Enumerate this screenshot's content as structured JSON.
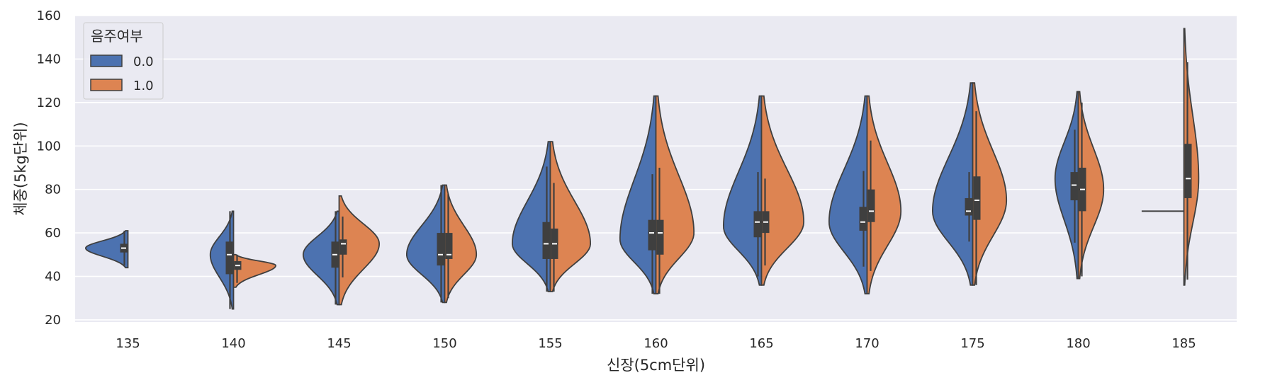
{
  "chart_data": {
    "type": "violin",
    "split": true,
    "xlabel": "신장(5cm단위)",
    "ylabel": "체중(5kg단위)",
    "ylim": [
      19,
      160
    ],
    "yticks": [
      20,
      40,
      60,
      80,
      100,
      120,
      140,
      160
    ],
    "categories": [
      "135",
      "140",
      "145",
      "150",
      "155",
      "160",
      "165",
      "170",
      "175",
      "180",
      "185"
    ],
    "grid": true,
    "legend": {
      "title": "음주여부",
      "position": "top-left",
      "entries": [
        {
          "label": "0.0",
          "color": "#4c72b0"
        },
        {
          "label": "1.0",
          "color": "#dd8452"
        }
      ]
    },
    "series": [
      {
        "name": "0.0",
        "color": "#4c72b0",
        "side": "left",
        "groups": [
          {
            "category": "135",
            "min": 44,
            "max": 61,
            "q1": 51,
            "median": 53,
            "q3": 55,
            "mode": 53,
            "width": 1.0
          },
          {
            "category": "140",
            "min": 25,
            "max": 70,
            "q1": 41,
            "median": 50,
            "q3": 56,
            "mode": 50,
            "width": 0.55
          },
          {
            "category": "145",
            "min": 27,
            "max": 70,
            "q1": 44,
            "median": 50,
            "q3": 56,
            "mode": 50,
            "width": 0.85
          },
          {
            "category": "150",
            "min": 28,
            "max": 82,
            "q1": 45,
            "median": 50,
            "q3": 60,
            "mode": 50,
            "width": 0.9
          },
          {
            "category": "155",
            "min": 33,
            "max": 102,
            "q1": 48,
            "median": 55,
            "q3": 65,
            "mode": 55,
            "width": 0.9
          },
          {
            "category": "160",
            "min": 32,
            "max": 123,
            "q1": 52,
            "median": 60,
            "q3": 66,
            "mode": 57,
            "width": 0.85
          },
          {
            "category": "165",
            "min": 36,
            "max": 123,
            "q1": 58,
            "median": 65,
            "q3": 70,
            "mode": 63,
            "width": 0.9
          },
          {
            "category": "170",
            "min": 32,
            "max": 123,
            "q1": 61,
            "median": 65,
            "q3": 72,
            "mode": 65,
            "width": 0.9
          },
          {
            "category": "175",
            "min": 36,
            "max": 129,
            "q1": 68,
            "median": 70,
            "q3": 76,
            "mode": 70,
            "width": 0.95
          },
          {
            "category": "180",
            "min": 39,
            "max": 125,
            "q1": 75,
            "median": 82,
            "q3": 88,
            "mode": 85,
            "width": 0.55
          },
          {
            "category": "185",
            "min": 70,
            "max": 70,
            "q1": 70,
            "median": 70,
            "q3": 70,
            "mode": 70,
            "width": 1.0
          }
        ]
      },
      {
        "name": "1.0",
        "color": "#dd8452",
        "side": "right",
        "groups": [
          {
            "category": "140",
            "min": 35,
            "max": 50,
            "q1": 43,
            "median": 45,
            "q3": 47,
            "mode": 45,
            "width": 1.0
          },
          {
            "category": "145",
            "min": 27,
            "max": 77,
            "q1": 50,
            "median": 55,
            "q3": 57,
            "mode": 55,
            "width": 0.95
          },
          {
            "category": "150",
            "min": 28,
            "max": 82,
            "q1": 48,
            "median": 50,
            "q3": 60,
            "mode": 50,
            "width": 0.75
          },
          {
            "category": "155",
            "min": 33,
            "max": 102,
            "q1": 48,
            "median": 55,
            "q3": 62,
            "mode": 55,
            "width": 0.95
          },
          {
            "category": "160",
            "min": 32,
            "max": 123,
            "q1": 50,
            "median": 60,
            "q3": 66,
            "mode": 60,
            "width": 0.9
          },
          {
            "category": "165",
            "min": 36,
            "max": 123,
            "q1": 60,
            "median": 65,
            "q3": 70,
            "mode": 65,
            "width": 1.0
          },
          {
            "category": "170",
            "min": 32,
            "max": 123,
            "q1": 65,
            "median": 70,
            "q3": 80,
            "mode": 70,
            "width": 0.8
          },
          {
            "category": "175",
            "min": 36,
            "max": 129,
            "q1": 66,
            "median": 75,
            "q3": 86,
            "mode": 75,
            "width": 0.8
          },
          {
            "category": "180",
            "min": 39,
            "max": 125,
            "q1": 70,
            "median": 80,
            "q3": 90,
            "mode": 80,
            "width": 0.6
          },
          {
            "category": "185",
            "min": 36,
            "max": 154,
            "q1": 76,
            "median": 85,
            "q3": 101,
            "mode": 85,
            "width": 0.35
          }
        ]
      }
    ]
  }
}
